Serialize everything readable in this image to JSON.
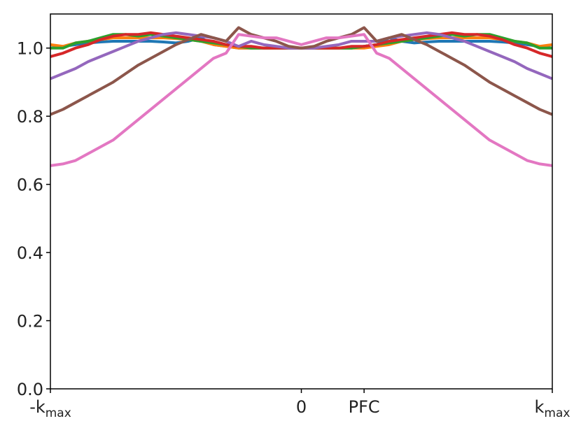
{
  "chart_data": {
    "type": "line",
    "title": "",
    "xlabel": "",
    "ylabel": "",
    "xlim": [
      -1,
      1
    ],
    "ylim": [
      0,
      1.1
    ],
    "grid": false,
    "y_ticks": [
      {
        "value": 0.0,
        "label": "0.0"
      },
      {
        "value": 0.2,
        "label": "0.2"
      },
      {
        "value": 0.4,
        "label": "0.4"
      },
      {
        "value": 0.6,
        "label": "0.6"
      },
      {
        "value": 0.8,
        "label": "0.8"
      },
      {
        "value": 1.0,
        "label": "1.0"
      }
    ],
    "x_ticks": [
      {
        "value": -1,
        "main": "-k",
        "sub": "max"
      },
      {
        "value": 0,
        "main": "0",
        "sub": ""
      },
      {
        "value": 0.25,
        "main": "PFC",
        "sub": ""
      },
      {
        "value": 1,
        "main": "k",
        "sub": "max"
      }
    ],
    "x": [
      -1.0,
      -0.95,
      -0.9,
      -0.85,
      -0.8,
      -0.75,
      -0.7,
      -0.65,
      -0.6,
      -0.55,
      -0.5,
      -0.45,
      -0.4,
      -0.35,
      -0.3,
      -0.25,
      -0.2,
      -0.15,
      -0.1,
      -0.05,
      0.0,
      0.05,
      0.1,
      0.15,
      0.2,
      0.25,
      0.3,
      0.35,
      0.4,
      0.45,
      0.5,
      0.55,
      0.6,
      0.65,
      0.7,
      0.75,
      0.8,
      0.85,
      0.9,
      0.95,
      1.0
    ],
    "series": [
      {
        "color": "#1f77b4",
        "values": [
          1.0,
          1.005,
          1.01,
          1.015,
          1.018,
          1.02,
          1.02,
          1.02,
          1.02,
          1.018,
          1.015,
          1.02,
          1.03,
          1.01,
          1.005,
          1.0,
          1.0,
          1.0,
          1.0,
          1.0,
          1.0,
          1.0,
          1.0,
          1.0,
          1.0,
          1.005,
          1.01,
          1.03,
          1.02,
          1.015,
          1.018,
          1.02,
          1.02,
          1.02,
          1.02,
          1.02,
          1.018,
          1.015,
          1.01,
          1.005,
          1.0
        ]
      },
      {
        "color": "#ff7f0e",
        "values": [
          1.01,
          1.005,
          1.015,
          1.02,
          1.025,
          1.03,
          1.03,
          1.03,
          1.03,
          1.03,
          1.028,
          1.025,
          1.02,
          1.01,
          1.005,
          1.0,
          1.0,
          1.0,
          1.0,
          1.0,
          1.0,
          1.0,
          1.0,
          1.0,
          1.0,
          1.0,
          1.005,
          1.01,
          1.02,
          1.025,
          1.028,
          1.03,
          1.03,
          1.03,
          1.03,
          1.03,
          1.025,
          1.02,
          1.015,
          1.005,
          1.01
        ]
      },
      {
        "color": "#2ca02c",
        "values": [
          1.0,
          1.0,
          1.015,
          1.02,
          1.03,
          1.04,
          1.04,
          1.035,
          1.04,
          1.035,
          1.03,
          1.025,
          1.02,
          1.015,
          1.01,
          1.005,
          1.0,
          1.0,
          1.0,
          1.0,
          1.0,
          1.0,
          1.0,
          1.0,
          1.0,
          1.005,
          1.01,
          1.015,
          1.02,
          1.025,
          1.03,
          1.035,
          1.04,
          1.035,
          1.04,
          1.04,
          1.03,
          1.02,
          1.015,
          1.0,
          1.0
        ]
      },
      {
        "color": "#d62728",
        "values": [
          0.975,
          0.985,
          1.0,
          1.01,
          1.025,
          1.035,
          1.04,
          1.04,
          1.045,
          1.04,
          1.035,
          1.03,
          1.025,
          1.02,
          1.01,
          1.005,
          1.005,
          1.0,
          1.0,
          1.0,
          1.0,
          1.0,
          1.0,
          1.0,
          1.005,
          1.005,
          1.01,
          1.02,
          1.025,
          1.03,
          1.035,
          1.04,
          1.045,
          1.04,
          1.04,
          1.035,
          1.025,
          1.01,
          1.0,
          0.985,
          0.975
        ]
      },
      {
        "color": "#9467bd",
        "values": [
          0.91,
          0.925,
          0.94,
          0.96,
          0.975,
          0.99,
          1.005,
          1.02,
          1.03,
          1.04,
          1.045,
          1.04,
          1.035,
          1.03,
          1.02,
          1.005,
          1.02,
          1.01,
          1.005,
          1.0,
          1.0,
          1.0,
          1.005,
          1.01,
          1.02,
          1.02,
          1.02,
          1.03,
          1.035,
          1.04,
          1.045,
          1.04,
          1.03,
          1.02,
          1.005,
          0.99,
          0.975,
          0.96,
          0.94,
          0.925,
          0.91
        ]
      },
      {
        "color": "#8c564b",
        "values": [
          0.805,
          0.82,
          0.84,
          0.86,
          0.88,
          0.9,
          0.925,
          0.95,
          0.97,
          0.99,
          1.01,
          1.025,
          1.04,
          1.03,
          1.02,
          1.06,
          1.04,
          1.03,
          1.02,
          1.005,
          1.0,
          1.005,
          1.02,
          1.03,
          1.04,
          1.06,
          1.02,
          1.03,
          1.04,
          1.025,
          1.01,
          0.99,
          0.97,
          0.95,
          0.925,
          0.9,
          0.88,
          0.86,
          0.84,
          0.82,
          0.805
        ]
      },
      {
        "color": "#e377c2",
        "values": [
          0.655,
          0.66,
          0.67,
          0.69,
          0.71,
          0.73,
          0.76,
          0.79,
          0.82,
          0.85,
          0.88,
          0.91,
          0.94,
          0.97,
          0.985,
          1.04,
          1.035,
          1.03,
          1.03,
          1.02,
          1.01,
          1.02,
          1.03,
          1.03,
          1.035,
          1.04,
          0.985,
          0.97,
          0.94,
          0.91,
          0.88,
          0.85,
          0.82,
          0.79,
          0.76,
          0.73,
          0.71,
          0.69,
          0.67,
          0.66,
          0.655
        ]
      }
    ]
  }
}
